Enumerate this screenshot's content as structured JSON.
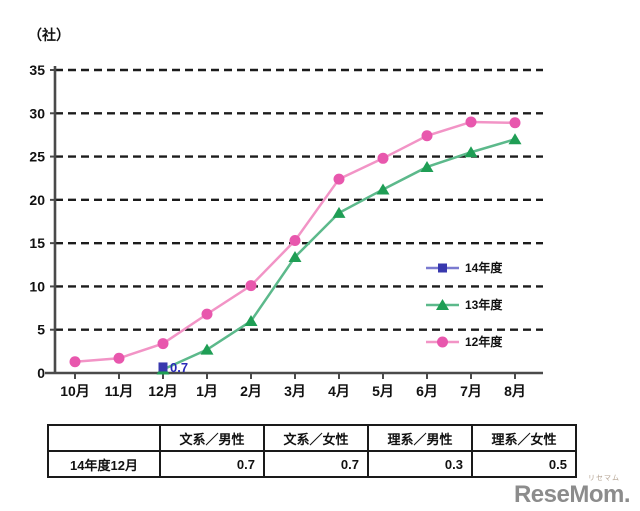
{
  "chart_data": {
    "type": "line",
    "title": "",
    "unit_label": "（社）",
    "xlabel": "",
    "ylabel": "社",
    "ylim": [
      0,
      35
    ],
    "ytick_step": 5,
    "grid": "dashed-horizontal",
    "legend_position": "right-middle",
    "categories": [
      "10月",
      "11月",
      "12月",
      "1月",
      "2月",
      "3月",
      "4月",
      "5月",
      "6月",
      "7月",
      "8月"
    ],
    "series": [
      {
        "name": "14年度",
        "marker": "square",
        "color": "#3838ae",
        "line_color": "#7a7ad0",
        "values": [
          null,
          null,
          0.7,
          null,
          null,
          null,
          null,
          null,
          null,
          null,
          null
        ],
        "point_label": {
          "index": 2,
          "text": "0.7"
        }
      },
      {
        "name": "13年度",
        "marker": "triangle",
        "color": "#1f9e55",
        "line_color": "#5cb98b",
        "values": [
          null,
          null,
          0.4,
          2.7,
          6.0,
          13.4,
          18.5,
          21.2,
          23.8,
          25.5,
          27.0
        ]
      },
      {
        "name": "12年度",
        "marker": "circle",
        "color": "#e857ad",
        "line_color": "#f294c6",
        "values": [
          1.3,
          1.7,
          3.4,
          6.8,
          10.1,
          15.3,
          22.4,
          24.8,
          27.4,
          29.0,
          28.9
        ]
      }
    ]
  },
  "table": {
    "corner": "",
    "headers": [
      "文系／男性",
      "文系／女性",
      "理系／男性",
      "理系／女性"
    ],
    "row_label": "14年度12月",
    "values": [
      "0.7",
      "0.7",
      "0.3",
      "0.5"
    ]
  },
  "footer": {
    "logo_text": "ReseMom.",
    "logo_ruby": "リセマム"
  }
}
